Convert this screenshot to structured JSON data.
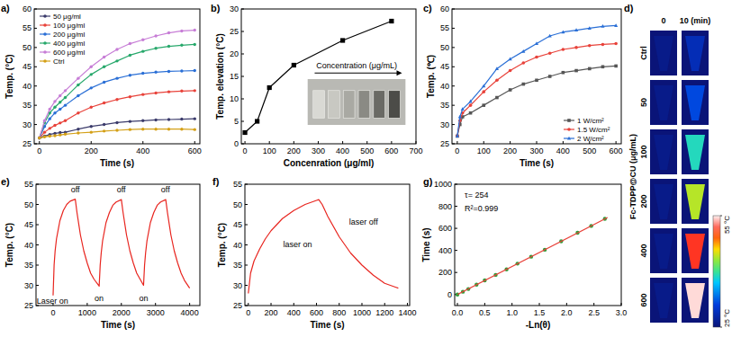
{
  "chart_data": [
    {
      "type": "line",
      "title": "a)",
      "x_label": "Time (s)",
      "y_label": "Temp. (°C)",
      "x": [
        0,
        20,
        40,
        60,
        80,
        100,
        150,
        200,
        250,
        300,
        350,
        400,
        450,
        500,
        550,
        600
      ],
      "series": [
        {
          "name": "50 μg/ml",
          "color": "#3b3b6b",
          "marker": "circle",
          "values": [
            26.5,
            27,
            27.4,
            27.7,
            27.9,
            28,
            28.8,
            29.5,
            30,
            30.5,
            30.8,
            31,
            31.2,
            31.3,
            31.4,
            31.5
          ]
        },
        {
          "name": "100 μg/ml",
          "color": "#e8423a",
          "marker": "circle",
          "values": [
            26.5,
            28,
            29,
            29.8,
            30.4,
            31,
            33,
            34.5,
            35.6,
            36.5,
            37.2,
            37.8,
            38.2,
            38.5,
            38.7,
            38.8
          ]
        },
        {
          "name": "200 μg/ml",
          "color": "#2a6fd6",
          "marker": "circle",
          "values": [
            26.5,
            29.5,
            31.5,
            33,
            34,
            35,
            37.5,
            39.5,
            41,
            42,
            42.8,
            43.3,
            43.6,
            43.8,
            43.9,
            44
          ]
        },
        {
          "name": "400 μg/ml",
          "color": "#27a86b",
          "marker": "circle",
          "values": [
            26.5,
            30.5,
            33,
            34.5,
            35.8,
            37,
            40.3,
            43,
            45,
            46.5,
            48,
            49,
            49.8,
            50.3,
            50.6,
            50.8
          ]
        },
        {
          "name": "600 μg/ml",
          "color": "#c77dd6",
          "marker": "circle",
          "values": [
            26.5,
            31,
            34,
            36,
            37.5,
            38.8,
            42,
            45,
            47.5,
            49.5,
            51,
            52,
            53,
            53.8,
            54.3,
            54.5
          ]
        },
        {
          "name": "Ctrl",
          "color": "#d4a017",
          "marker": "circle",
          "values": [
            26.5,
            26.8,
            27,
            27.1,
            27.3,
            27.5,
            27.8,
            28,
            28.3,
            28.5,
            28.7,
            28.8,
            28.8,
            28.8,
            28.8,
            28.7
          ]
        }
      ],
      "xlim": [
        -20,
        620
      ],
      "ylim": [
        25,
        60
      ],
      "xticks": [
        0,
        200,
        400,
        600
      ],
      "yticks": [
        25,
        30,
        35,
        40,
        45,
        50,
        55,
        60
      ],
      "legend": "upper left"
    },
    {
      "type": "line",
      "title": "b)",
      "x_label": "Concenration (μg/ml)",
      "y_label": "Temp. elevation (°C)",
      "annotations": [
        "Concentration (μg/mL)"
      ],
      "x": [
        0,
        50,
        100,
        200,
        400,
        600
      ],
      "series": [
        {
          "color": "#000000",
          "marker": "square",
          "values": [
            2.5,
            5,
            12.5,
            17.5,
            23,
            27.3
          ]
        }
      ],
      "xlim": [
        -15,
        700
      ],
      "ylim": [
        0,
        30
      ],
      "xticks": [
        0,
        100,
        200,
        300,
        400,
        500,
        600,
        700
      ],
      "yticks": [
        0,
        5,
        10,
        15,
        20,
        25,
        30
      ]
    },
    {
      "type": "line",
      "title": "c)",
      "x_label": "Time (s)",
      "y_label": "Temp. (℃)",
      "x": [
        0,
        10,
        20,
        50,
        100,
        150,
        200,
        250,
        300,
        350,
        400,
        450,
        500,
        550,
        600
      ],
      "series": [
        {
          "name": "1 W/cm²",
          "color": "#555555",
          "marker": "square",
          "values": [
            27,
            30,
            32,
            33,
            35,
            37,
            39,
            40.5,
            41.5,
            42.5,
            43.5,
            44,
            44.5,
            45,
            45.2
          ]
        },
        {
          "name": "1.5 W/cm²",
          "color": "#e8423a",
          "marker": "circle",
          "values": [
            27,
            31,
            33,
            35,
            38.5,
            41.5,
            44,
            46,
            47.5,
            48.5,
            49.5,
            50,
            50.5,
            50.8,
            51
          ]
        },
        {
          "name": "2 W/cm²",
          "color": "#2a6fd6",
          "marker": "triangle",
          "values": [
            27,
            32,
            34,
            36,
            40,
            44.5,
            47,
            49,
            51,
            53,
            54,
            54.5,
            55,
            55.5,
            55.7
          ]
        }
      ],
      "xlim": [
        -20,
        620
      ],
      "ylim": [
        25,
        60
      ],
      "xticks": [
        0,
        100,
        200,
        300,
        400,
        500,
        600
      ],
      "yticks": [
        25,
        30,
        35,
        40,
        45,
        50,
        55,
        60
      ],
      "legend": "lower right"
    },
    {
      "type": "thermal_image",
      "title": "d)",
      "y_label": "Fc-TDPP@CU (μg/mL)",
      "categories": [
        "Ctrl",
        "50",
        "100",
        "200",
        "400",
        "600"
      ],
      "series": [
        {
          "name": "0",
          "values": [
            26,
            26,
            26,
            26,
            26,
            26
          ]
        },
        {
          "name": "10 (min)",
          "values": [
            28.7,
            31.5,
            38.8,
            44,
            50.8,
            54.5
          ]
        }
      ],
      "colorbar_range": [
        25,
        55
      ],
      "colorbar_ticks": [
        {
          "value": 25,
          "label": "25 °C"
        },
        {
          "value": 55,
          "label": "55 °C"
        }
      ]
    },
    {
      "type": "line",
      "title": "e)",
      "x_label": "Time (s)",
      "y_label": "Temp. (°C)",
      "annotations": [
        "Laser on",
        "off",
        "off",
        "off",
        "on",
        "on"
      ],
      "x": [
        0,
        30,
        60,
        100,
        200,
        300,
        400,
        500,
        650,
        700,
        800,
        900,
        1000,
        1100,
        1200,
        1350,
        1380,
        1410,
        1450,
        1550,
        1650,
        1750,
        1850,
        2000,
        2050,
        2150,
        2250,
        2350,
        2450,
        2550,
        2650,
        2680,
        2710,
        2750,
        2850,
        2950,
        3050,
        3150,
        3300,
        3350,
        3450,
        3550,
        3650,
        3750,
        3850,
        4000
      ],
      "series": [
        {
          "color": "#e8251f",
          "values": [
            27.5,
            35,
            38.5,
            41.5,
            46,
            48.5,
            50,
            50.8,
            51.3,
            48,
            42.5,
            38.5,
            35.5,
            33,
            31.5,
            29.8,
            35,
            38,
            41,
            45.5,
            48,
            49.8,
            50.6,
            51.2,
            48,
            42.5,
            38.5,
            35.5,
            33,
            31.5,
            30,
            35,
            38,
            41,
            45.5,
            48,
            49.8,
            50.6,
            51.2,
            48,
            42.5,
            38.5,
            35.5,
            33,
            31.2,
            29.3
          ]
        }
      ],
      "xlim": [
        -500,
        4300
      ],
      "ylim": [
        25,
        55
      ],
      "xticks": [
        0,
        1000,
        2000,
        3000,
        4000
      ],
      "yticks": [
        25,
        30,
        35,
        40,
        45,
        50,
        55
      ]
    },
    {
      "type": "line",
      "title": "f)",
      "x_label": "Time (s)",
      "y_label": "Temp. (°C)",
      "annotations": [
        "laser on",
        "laser off"
      ],
      "x": [
        0,
        20,
        50,
        100,
        150,
        200,
        250,
        300,
        400,
        500,
        600,
        620,
        650,
        700,
        800,
        900,
        1000,
        1100,
        1200,
        1300,
        1320
      ],
      "series": [
        {
          "color": "#e8251f",
          "values": [
            28,
            33,
            36,
            39,
            41.5,
            43.5,
            45,
            46.5,
            48.5,
            50,
            51,
            51.2,
            50,
            47,
            42,
            38,
            35,
            32.5,
            30.5,
            29.5,
            29.3
          ]
        }
      ],
      "xlim": [
        -30,
        1420
      ],
      "ylim": [
        25,
        55
      ],
      "xticks": [
        0,
        200,
        400,
        600,
        800,
        1000,
        1200,
        1400
      ],
      "yticks": [
        25,
        30,
        35,
        40,
        45,
        50,
        55
      ]
    },
    {
      "type": "scatter",
      "title": "g)",
      "x_label": "-Ln(θ)",
      "y_label": "Time (s)",
      "annotations": [
        "τ= 254",
        "R²=0.999"
      ],
      "series": [
        {
          "type": "scatter",
          "color": "#2e9e3a",
          "marker": "circle",
          "x": [
            0,
            0.1,
            0.2,
            0.35,
            0.5,
            0.7,
            0.9,
            1.1,
            1.35,
            1.6,
            1.9,
            2.2,
            2.45,
            2.7
          ],
          "values": [
            0,
            25,
            50,
            90,
            128,
            178,
            228,
            280,
            343,
            406,
            482,
            560,
            622,
            686
          ]
        },
        {
          "type": "line",
          "color": "#e8423a",
          "x": [
            0,
            2.75
          ],
          "values": [
            0,
            698
          ]
        }
      ],
      "xlim": [
        -0.05,
        3.0
      ],
      "ylim": [
        -100,
        1000
      ],
      "xticks": [
        {
          "value": 0,
          "label": "0.0"
        },
        0.5,
        {
          "value": 1,
          "label": "1.0"
        },
        1.5,
        {
          "value": 2,
          "label": "2.0"
        },
        2.5,
        {
          "value": 3,
          "label": "3.0"
        }
      ],
      "yticks": [
        0,
        200,
        400,
        600,
        800,
        1000
      ]
    }
  ]
}
